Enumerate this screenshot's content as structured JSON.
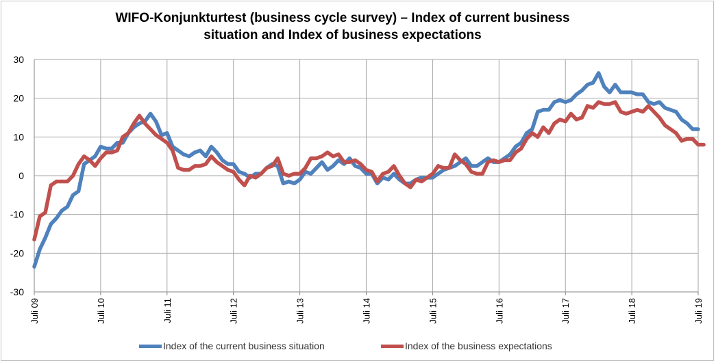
{
  "chart_data": {
    "type": "line",
    "title_line1": "WIFO-Konjunkturtest (business cycle survey) – Index of current business",
    "title_line2": "situation and Index of business expectations",
    "ylim": [
      -30,
      30
    ],
    "y_ticks": [
      "30",
      "20",
      "10",
      "0",
      "-10",
      "-20",
      "-30"
    ],
    "y_tick_values": [
      30,
      20,
      10,
      0,
      -10,
      -20,
      -30
    ],
    "x_start_month": 7,
    "x_start_year": 2009,
    "x_tick_labels": [
      "Juli 09",
      "Juli 10",
      "Juli 11",
      "Juli 12",
      "Juli 13",
      "Juli 14",
      "Juli 15",
      "Juli 16",
      "Juli 17",
      "Juli 18",
      "Juli 19"
    ],
    "grid": true,
    "legend_position": "bottom",
    "series": [
      {
        "name": "Index of the current business situation",
        "color": "#4f81bd",
        "values": [
          -23.5,
          -19,
          -16,
          -12.5,
          -11,
          -9,
          -8,
          -5,
          -4,
          3,
          4,
          5,
          7.5,
          7,
          7,
          8.5,
          8.5,
          11,
          12.5,
          13.5,
          14,
          16,
          14,
          10.5,
          11,
          7.5,
          6.5,
          5.5,
          5,
          6,
          6.5,
          5,
          7.5,
          6,
          4,
          3,
          3,
          1,
          0.5,
          -0.5,
          0.5,
          0.5,
          2,
          3,
          2.5,
          -2,
          -1.5,
          -2,
          -1,
          1,
          0.5,
          2,
          3.5,
          1.5,
          2.5,
          4,
          3,
          4.5,
          2.5,
          2,
          0.5,
          0.5,
          -2,
          -0.5,
          -1,
          0.5,
          -1,
          -2,
          -2,
          -1,
          -0.5,
          -0.5,
          -0.5,
          0.5,
          1.5,
          2,
          2.5,
          3.5,
          4.5,
          2.5,
          2.5,
          3.5,
          4.5,
          3.5,
          3.5,
          4.5,
          5.5,
          7.5,
          8.5,
          11,
          12,
          16.5,
          17,
          17,
          19,
          19.5,
          19,
          19.5,
          21,
          22,
          23.5,
          24,
          26.5,
          23,
          21.5,
          23.5,
          21.5,
          21.5,
          21.5,
          21,
          21,
          19,
          18.5,
          19,
          17.5,
          17,
          16.5,
          14.5,
          13.5,
          12,
          12
        ]
      },
      {
        "name": "Index of the business expectations",
        "color": "#c0504d",
        "values": [
          -16.5,
          -10.5,
          -9.5,
          -2.5,
          -1.5,
          -1.5,
          -1.5,
          0,
          3,
          5,
          4,
          2.5,
          4.5,
          6,
          6,
          6.5,
          10,
          11,
          13.5,
          15.5,
          13.5,
          12,
          10.5,
          9.5,
          8.5,
          6.5,
          2,
          1.5,
          1.5,
          2.5,
          2.5,
          3,
          5,
          3.5,
          2.5,
          1.5,
          1,
          -1,
          -2.5,
          0,
          -0.5,
          0.5,
          2,
          2.5,
          4.5,
          0.5,
          0,
          0.5,
          0.5,
          2,
          4.5,
          4.5,
          5,
          6,
          5,
          5.5,
          3.5,
          3.5,
          4,
          3,
          1.5,
          1,
          -1.5,
          0.5,
          1,
          2.5,
          0,
          -2,
          -3,
          -1,
          -1.5,
          -0.5,
          0.5,
          2.5,
          2,
          2,
          5.5,
          4,
          3,
          1,
          0.5,
          0.5,
          3.5,
          4,
          3.5,
          4,
          4,
          6,
          7,
          9.5,
          11,
          10,
          12.5,
          11,
          13.5,
          14.5,
          14,
          16,
          14.5,
          15,
          18,
          17.5,
          19,
          18.5,
          18.5,
          19,
          16.5,
          16,
          16.5,
          17,
          16.5,
          18,
          16.5,
          15,
          13,
          12,
          11,
          9,
          9.5,
          9.5,
          8,
          8
        ]
      }
    ]
  }
}
